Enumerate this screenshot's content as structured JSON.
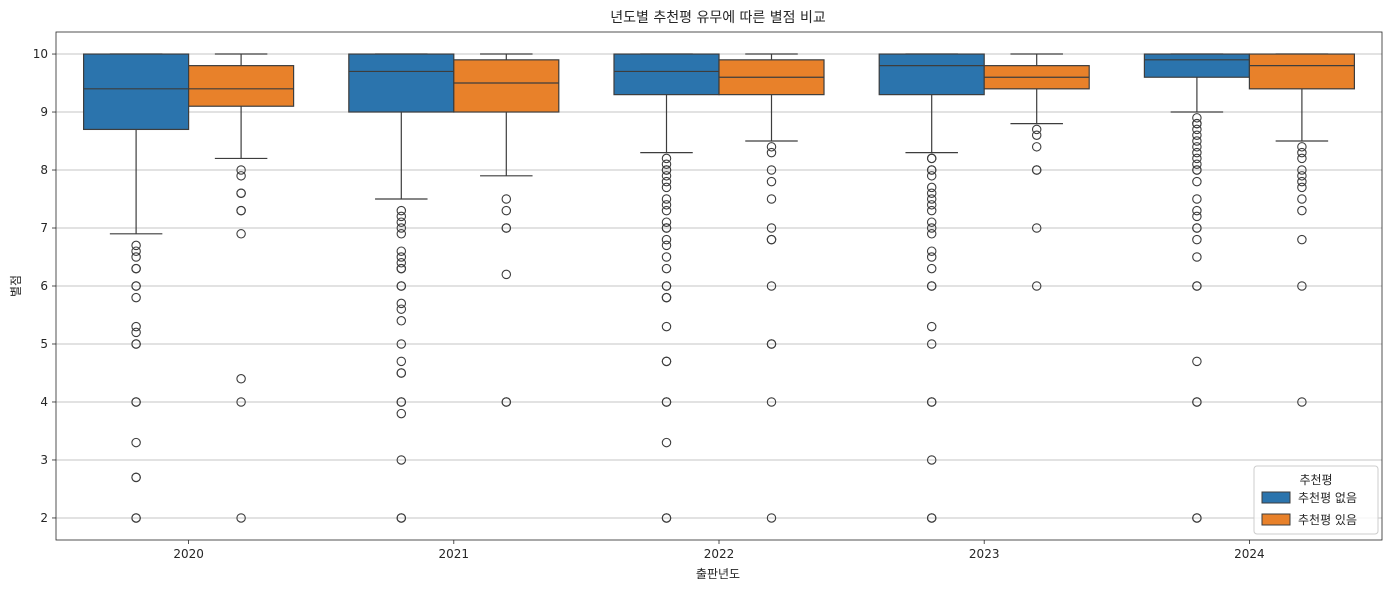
{
  "chart_data": {
    "type": "boxplot",
    "title": "년도별 추천평 유무에 따른 별점 비교",
    "xlabel": "출판년도",
    "ylabel": "별점",
    "categories": [
      "2020",
      "2021",
      "2022",
      "2023",
      "2024"
    ],
    "ylim": [
      1.62,
      10.38
    ],
    "yticks": [
      2,
      3,
      4,
      5,
      6,
      7,
      8,
      9,
      10
    ],
    "grid": "y",
    "legend": {
      "title": "추천평",
      "placement": "lower-right",
      "entries": [
        "추천평 없음",
        "추천평 있음"
      ]
    },
    "series": [
      {
        "name": "추천평 없음",
        "color": "#2b74ad",
        "boxes": [
          {
            "min": 6.9,
            "q1": 8.7,
            "median": 9.4,
            "q3": 10.0,
            "max": 10.0,
            "outliers": [
              6.7,
              6.6,
              6.5,
              6.3,
              6.3,
              6.0,
              6.0,
              5.8,
              5.3,
              5.2,
              5.0,
              5.0,
              4.0,
              4.0,
              3.3,
              2.7,
              2.7,
              2.0,
              2.0
            ]
          },
          {
            "min": 7.5,
            "q1": 9.0,
            "median": 9.7,
            "q3": 10.0,
            "max": 10.0,
            "outliers": [
              7.3,
              7.2,
              7.1,
              7.0,
              6.9,
              6.6,
              6.5,
              6.4,
              6.3,
              6.3,
              6.0,
              6.0,
              5.7,
              5.6,
              5.4,
              5.0,
              4.7,
              4.5,
              4.5,
              4.0,
              4.0,
              3.8,
              3.0,
              2.0,
              2.0
            ]
          },
          {
            "min": 8.3,
            "q1": 9.3,
            "median": 9.7,
            "q3": 10.0,
            "max": 10.0,
            "outliers": [
              8.2,
              8.1,
              8.0,
              8.0,
              7.9,
              7.8,
              7.7,
              7.5,
              7.4,
              7.3,
              7.1,
              7.0,
              7.0,
              6.8,
              6.7,
              6.5,
              6.3,
              6.0,
              6.0,
              5.8,
              5.8,
              5.3,
              4.7,
              4.7,
              4.0,
              4.0,
              3.3,
              2.0,
              2.0
            ]
          },
          {
            "min": 8.3,
            "q1": 9.3,
            "median": 9.8,
            "q3": 10.0,
            "max": 10.0,
            "outliers": [
              8.2,
              8.2,
              8.0,
              8.0,
              7.9,
              7.7,
              7.6,
              7.5,
              7.4,
              7.3,
              7.1,
              7.0,
              6.9,
              6.6,
              6.5,
              6.3,
              6.0,
              6.0,
              5.3,
              5.0,
              4.0,
              4.0,
              3.0,
              2.0,
              2.0
            ]
          },
          {
            "min": 9.0,
            "q1": 9.6,
            "median": 9.9,
            "q3": 10.0,
            "max": 10.0,
            "outliers": [
              8.9,
              8.8,
              8.8,
              8.7,
              8.6,
              8.5,
              8.4,
              8.3,
              8.2,
              8.1,
              8.0,
              8.0,
              7.8,
              7.5,
              7.3,
              7.2,
              7.0,
              7.0,
              6.8,
              6.5,
              6.0,
              6.0,
              4.7,
              4.0,
              4.0,
              2.0,
              2.0
            ]
          }
        ]
      },
      {
        "name": "추천평 있음",
        "color": "#e8812a",
        "boxes": [
          {
            "min": 8.2,
            "q1": 9.1,
            "median": 9.4,
            "q3": 9.8,
            "max": 10.0,
            "outliers": [
              8.0,
              7.9,
              7.6,
              7.6,
              7.3,
              7.3,
              6.9,
              4.4,
              4.0,
              2.0
            ]
          },
          {
            "min": 7.9,
            "q1": 9.0,
            "median": 9.5,
            "q3": 9.9,
            "max": 10.0,
            "outliers": [
              7.5,
              7.3,
              7.0,
              7.0,
              6.2,
              4.0,
              4.0
            ]
          },
          {
            "min": 8.5,
            "q1": 9.3,
            "median": 9.6,
            "q3": 9.9,
            "max": 10.0,
            "outliers": [
              8.4,
              8.3,
              8.0,
              7.8,
              7.5,
              7.0,
              6.8,
              6.8,
              6.0,
              5.0,
              5.0,
              4.0,
              2.0
            ]
          },
          {
            "min": 8.8,
            "q1": 9.4,
            "median": 9.6,
            "q3": 9.8,
            "max": 10.0,
            "outliers": [
              8.7,
              8.6,
              8.4,
              8.0,
              8.0,
              7.0,
              6.0
            ]
          },
          {
            "min": 8.5,
            "q1": 9.4,
            "median": 9.8,
            "q3": 10.0,
            "max": 10.0,
            "outliers": [
              8.4,
              8.3,
              8.2,
              8.0,
              7.9,
              7.8,
              7.7,
              7.5,
              7.3,
              6.8,
              6.0,
              4.0
            ]
          }
        ]
      }
    ]
  }
}
